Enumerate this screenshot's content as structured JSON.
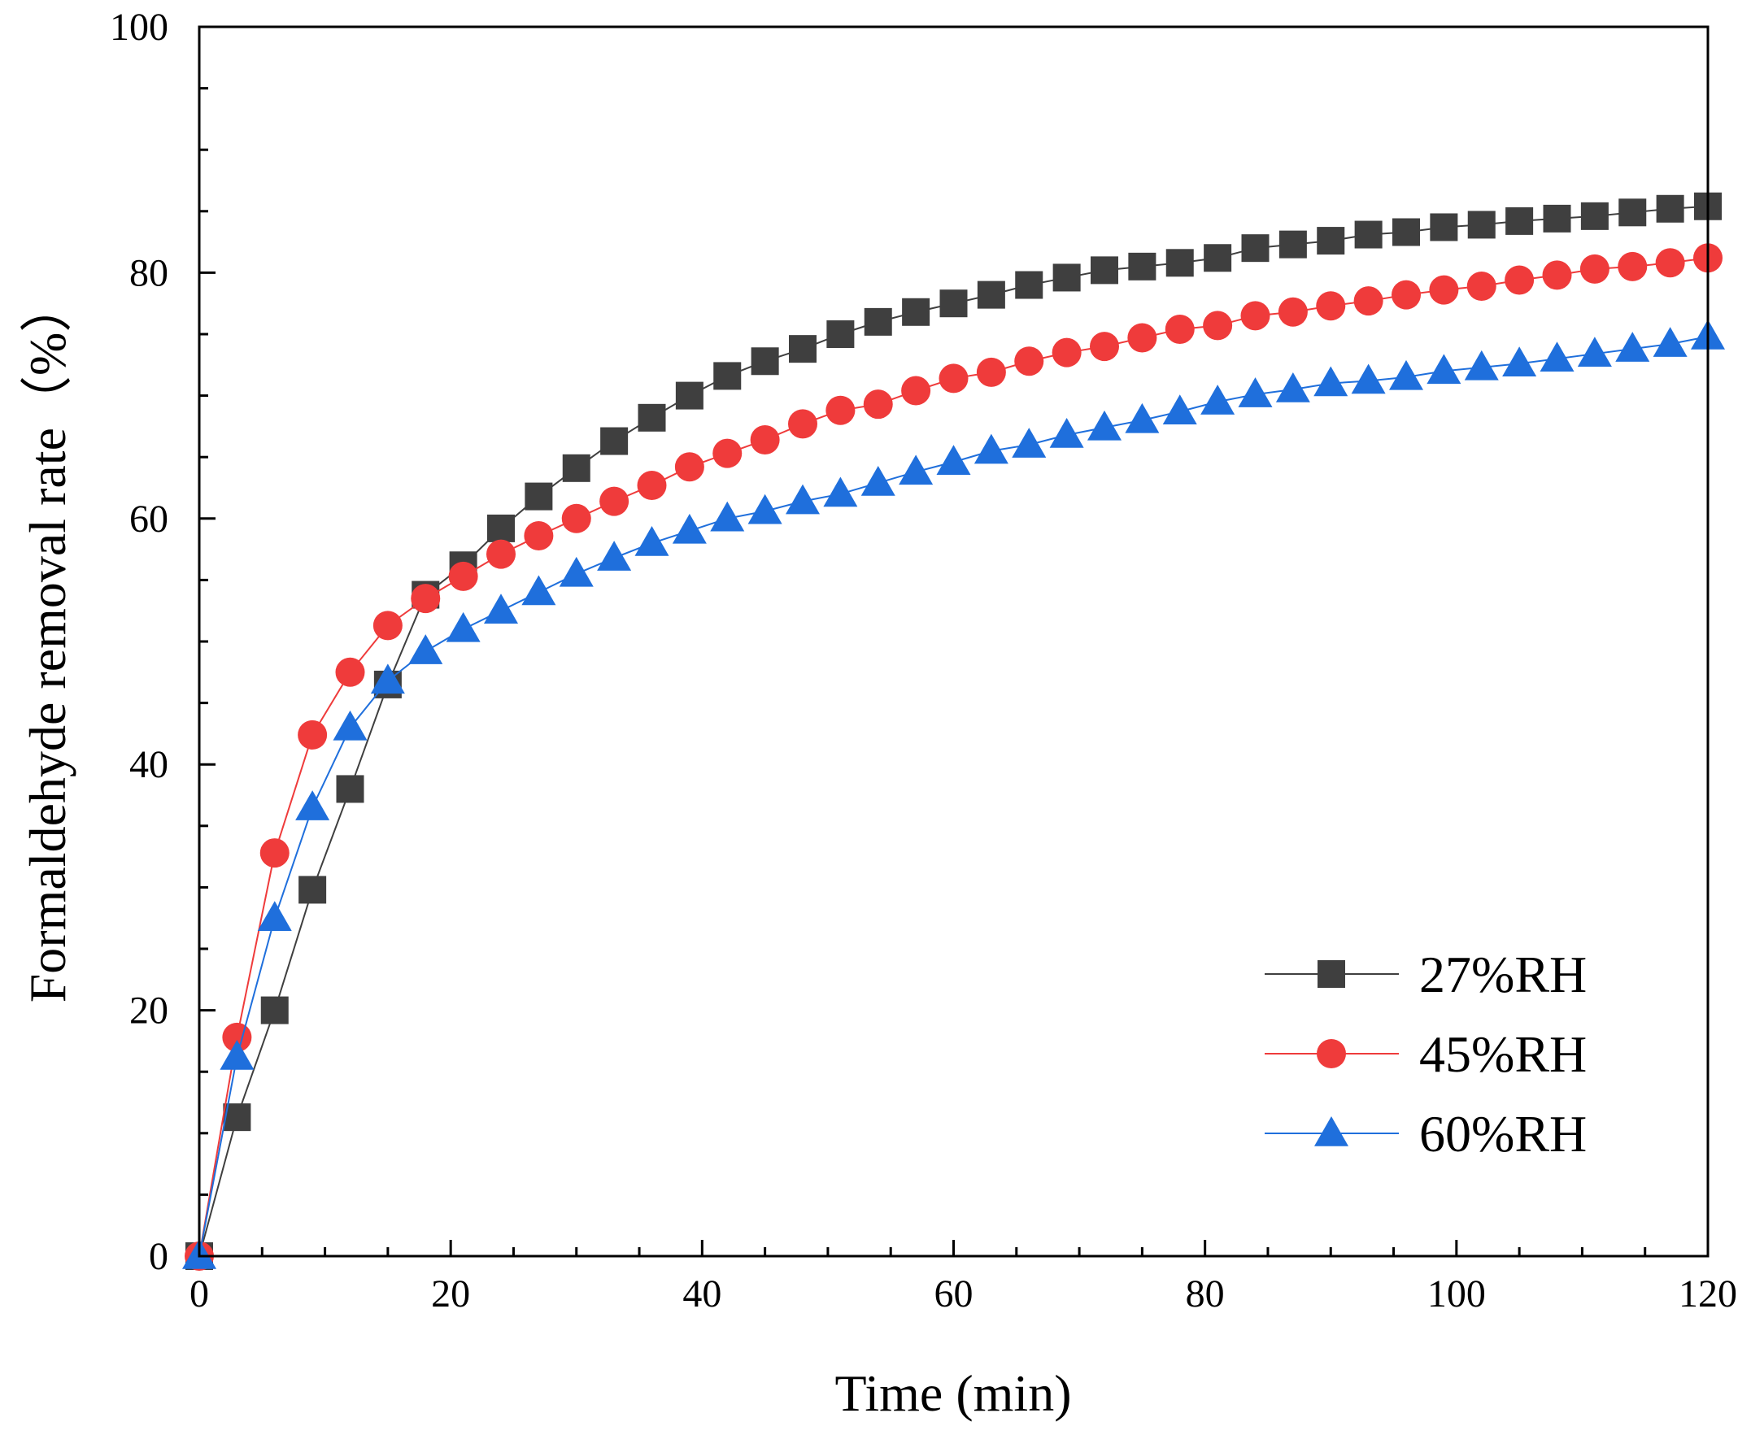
{
  "chart_data": {
    "type": "line",
    "title": "",
    "xlabel": "Time (min)",
    "ylabel": "Formaldehyde removal rate（%）",
    "xlim": [
      0,
      120
    ],
    "ylim": [
      0,
      100
    ],
    "xticks": [
      0,
      20,
      40,
      60,
      80,
      100,
      120
    ],
    "yticks": [
      0,
      20,
      40,
      60,
      80,
      100
    ],
    "grid": false,
    "legend_position": "bottom-right",
    "x": [
      0,
      3,
      6,
      9,
      12,
      15,
      18,
      21,
      24,
      27,
      30,
      33,
      36,
      39,
      42,
      45,
      48,
      51,
      54,
      57,
      60,
      63,
      66,
      69,
      72,
      75,
      78,
      81,
      84,
      87,
      90,
      93,
      96,
      99,
      102,
      105,
      108,
      111,
      114,
      117,
      120
    ],
    "series": [
      {
        "name": "27%RH",
        "color": "#3f3f3f",
        "marker": "square",
        "values": [
          0,
          11.3,
          20.0,
          29.8,
          38.0,
          46.5,
          53.8,
          56.2,
          59.2,
          61.8,
          64.1,
          66.3,
          68.2,
          70.0,
          71.6,
          72.8,
          73.8,
          75.0,
          76.0,
          76.8,
          77.5,
          78.2,
          79.0,
          79.6,
          80.2,
          80.5,
          80.8,
          81.2,
          82.0,
          82.3,
          82.6,
          83.1,
          83.3,
          83.7,
          83.9,
          84.2,
          84.4,
          84.6,
          84.9,
          85.2,
          85.4
        ]
      },
      {
        "name": "45%RH",
        "color": "#ef3b3b",
        "marker": "circle",
        "values": [
          0,
          17.8,
          32.8,
          42.4,
          47.5,
          51.3,
          53.5,
          55.3,
          57.1,
          58.6,
          60.0,
          61.4,
          62.7,
          64.2,
          65.3,
          66.4,
          67.7,
          68.8,
          69.3,
          70.4,
          71.4,
          71.9,
          72.8,
          73.5,
          74.0,
          74.7,
          75.4,
          75.7,
          76.5,
          76.8,
          77.3,
          77.7,
          78.2,
          78.6,
          78.9,
          79.4,
          79.8,
          80.3,
          80.5,
          80.8,
          81.2
        ]
      },
      {
        "name": "60%RH",
        "color": "#1f6fdc",
        "marker": "triangle",
        "values": [
          0,
          16.2,
          27.5,
          36.5,
          43.0,
          46.8,
          49.2,
          51.0,
          52.5,
          54.0,
          55.5,
          56.8,
          58.0,
          59.0,
          60.0,
          60.6,
          61.4,
          62.0,
          62.9,
          63.8,
          64.6,
          65.5,
          66.0,
          66.8,
          67.4,
          68.0,
          68.7,
          69.5,
          70.1,
          70.5,
          71.0,
          71.2,
          71.5,
          72.0,
          72.3,
          72.6,
          73.0,
          73.4,
          73.8,
          74.2,
          74.8
        ]
      }
    ]
  }
}
